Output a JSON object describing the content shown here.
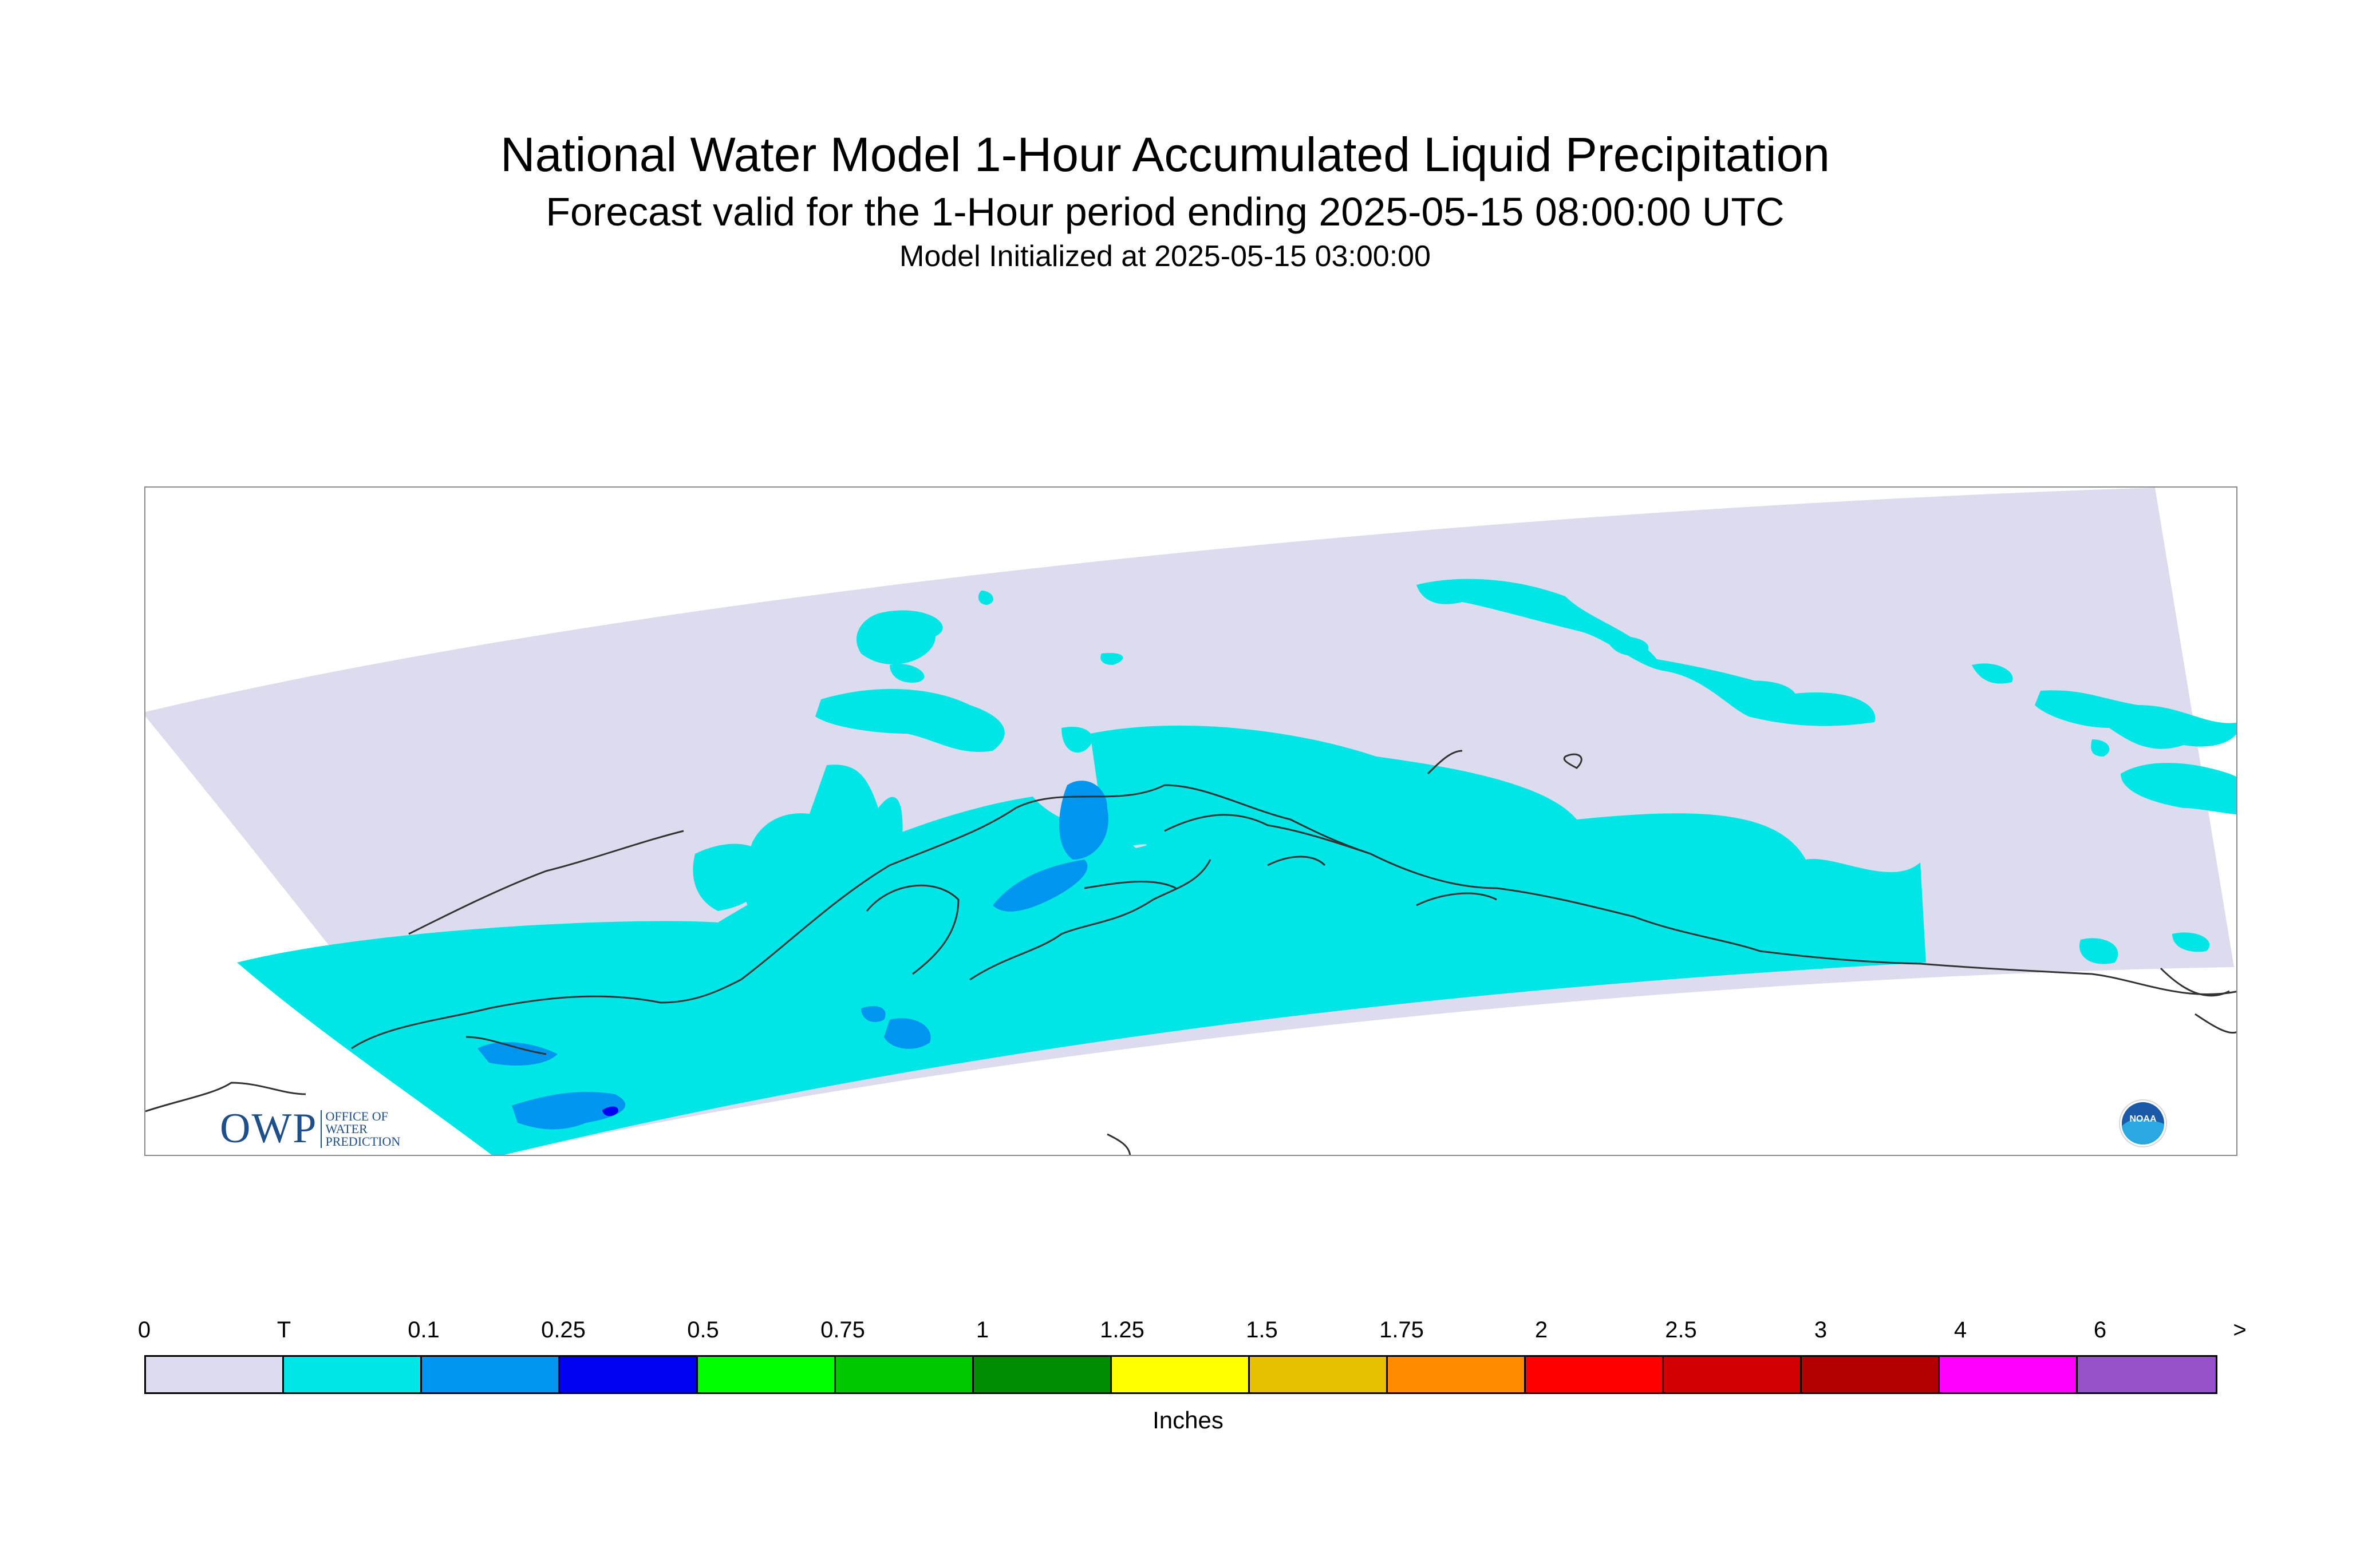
{
  "title": {
    "line1": "National Water Model 1-Hour Accumulated Liquid Precipitation",
    "line2": "Forecast valid for the 1-Hour period ending 2025-05-15 08:00:00 UTC",
    "line3": "Model Initialized at 2025-05-15 03:00:00"
  },
  "logos": {
    "owp_letters": "OWP",
    "owp_subtext": "OFFICE OF\nWATER\nPREDICTION",
    "noaa_text": "NOAA"
  },
  "legend": {
    "units": "Inches",
    "tick_labels": [
      "0",
      "T",
      "0.1",
      "0.25",
      "0.5",
      "0.75",
      "1",
      "1.25",
      "1.5",
      "1.75",
      "2",
      "2.5",
      "3",
      "4",
      "6",
      ">"
    ],
    "colors": [
      "#dcdcee",
      "#00e6e6",
      "#0096f0",
      "#0000f0",
      "#00ff00",
      "#00c800",
      "#008c00",
      "#ffff00",
      "#e6c000",
      "#ff8c00",
      "#ff0000",
      "#d20000",
      "#b40000",
      "#ff00ff",
      "#9650c8"
    ]
  },
  "map": {
    "domain_color": "#dcdcee",
    "trace_color": "#00e6e6",
    "light_color": "#0096f0",
    "moderate_color": "#0000f0",
    "coast_color": "#333333"
  }
}
